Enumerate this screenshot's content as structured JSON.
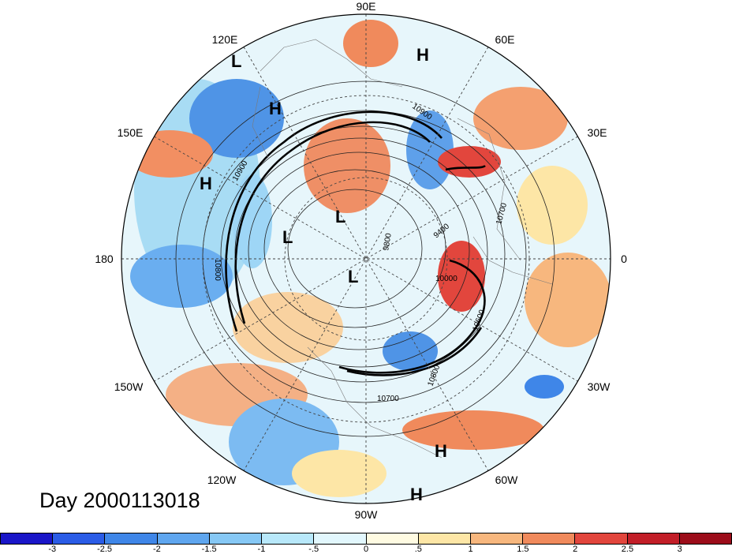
{
  "title": "Day 2000113018",
  "longitude_labels": [
    {
      "text": "90E"
    },
    {
      "text": "60E"
    },
    {
      "text": "30E"
    },
    {
      "text": "0"
    },
    {
      "text": "30W"
    },
    {
      "text": "60W"
    },
    {
      "text": "90W"
    },
    {
      "text": "120W"
    },
    {
      "text": "150W"
    },
    {
      "text": "180"
    },
    {
      "text": "150E"
    },
    {
      "text": "120E"
    }
  ],
  "pressure_centers": [
    "L",
    "L",
    "L",
    "L",
    "H",
    "H",
    "H",
    "H",
    "H"
  ],
  "contour_labels": [
    "10900",
    "10900",
    "10700",
    "10600",
    "10800",
    "10700",
    "10000",
    "9800",
    "9400",
    "10800"
  ],
  "colorbar": {
    "ticks": [
      "-3",
      "-2.5",
      "-2",
      "-1.5",
      "-1",
      "-.5",
      "0",
      ".5",
      "1",
      "1.5",
      "2",
      "2.5",
      "3"
    ],
    "colors": [
      "#1a16c8",
      "#2b5ce6",
      "#3f86e8",
      "#5fa6ef",
      "#86c8f5",
      "#b8e8fa",
      "#e2f7fd",
      "#fffbe2",
      "#fde6a6",
      "#f7b77e",
      "#f08a5c",
      "#e2463d",
      "#c21e28",
      "#9c0d1a"
    ]
  }
}
